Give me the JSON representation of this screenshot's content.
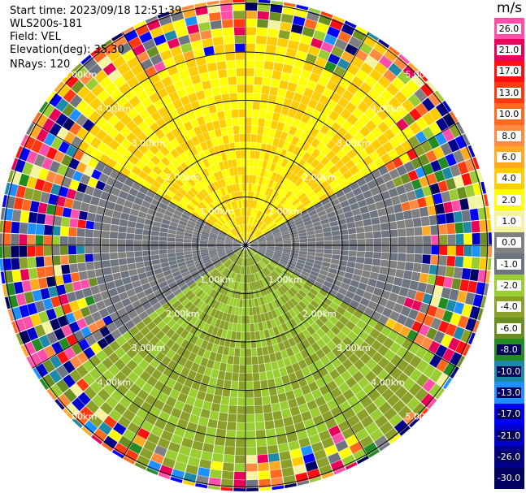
{
  "header": {
    "start_time": "Start time: 2023/09/18 12:51:39",
    "site": "WLS200s-181",
    "field": "Field: VEL",
    "elevation": "Elevation(deg): 35.30",
    "nrays": "NRays: 120"
  },
  "chart_data": {
    "type": "heatmap",
    "projection": "polar-ppi",
    "colorbar_unit": "m/s",
    "colorbar_ticks": [
      "26.0",
      "21.0",
      "17.0",
      "13.0",
      "10.0",
      "8.0",
      "6.0",
      "4.0",
      "2.0",
      "1.0",
      "0.0",
      "-1.0",
      "-2.0",
      "-4.0",
      "-6.0",
      "-8.0",
      "-10.0",
      "-13.0",
      "-17.0",
      "-21.0",
      "-26.0",
      "-30.0"
    ],
    "colorbar_colors": [
      "#ff4fa8",
      "#e8005a",
      "#ff1010",
      "#ff3a10",
      "#ff6a20",
      "#ff8a40",
      "#ffaa20",
      "#ffcc00",
      "#ffff00",
      "#f4f4a0",
      "#808080",
      "#6f7580",
      "#9acd32",
      "#8aa028",
      "#6b8e23",
      "#228b22",
      "#1e8aa8",
      "#1e90ff",
      "#0000ff",
      "#0000cd",
      "#00008b",
      "#000060"
    ],
    "range_rings_km": [
      1,
      2,
      3,
      4,
      5
    ],
    "ring_labels": [
      "1.00km",
      "2.00km",
      "3.00km",
      "4.00km",
      "5.00km"
    ],
    "spokes": 12,
    "nrays": 120,
    "elevation_deg": 35.3,
    "velocity_regions": [
      {
        "sector": "north",
        "value_ms": 3.0,
        "max_range_km": 4.3
      },
      {
        "sector": "west",
        "value_ms": 0.0,
        "max_range_km": 3.4
      },
      {
        "sector": "east",
        "value_ms": 0.0,
        "max_range_km": 3.5
      },
      {
        "sector": "south",
        "value_ms": -3.0,
        "max_range_km": 4.6
      }
    ],
    "outer_noise": true
  }
}
